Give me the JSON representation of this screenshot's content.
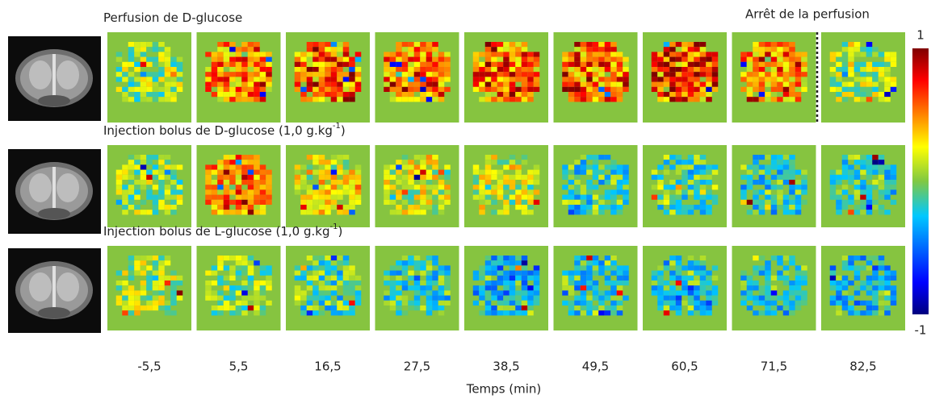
{
  "rows": [
    {
      "title_main": "Perfusion de D-glucose",
      "title_sup": null,
      "title_end": null
    },
    {
      "title_main": "Injection bolus de D-glucose (1,0 g.kg",
      "title_sup": "-1",
      "title_end": ")"
    },
    {
      "title_main": "Injection bolus de L-glucose (1,0 g.kg",
      "title_sup": "-1",
      "title_end": ")"
    }
  ],
  "annotation": "Arrêt de la perfusion",
  "time_labels": [
    "-5,5",
    "5,5",
    "16,5",
    "27,5",
    "38,5",
    "49,5",
    "60,5",
    "71,5",
    "82,5"
  ],
  "x_axis_label": "Temps (min)",
  "colorbar": {
    "max_label": "1",
    "min_label": "-1"
  }
}
